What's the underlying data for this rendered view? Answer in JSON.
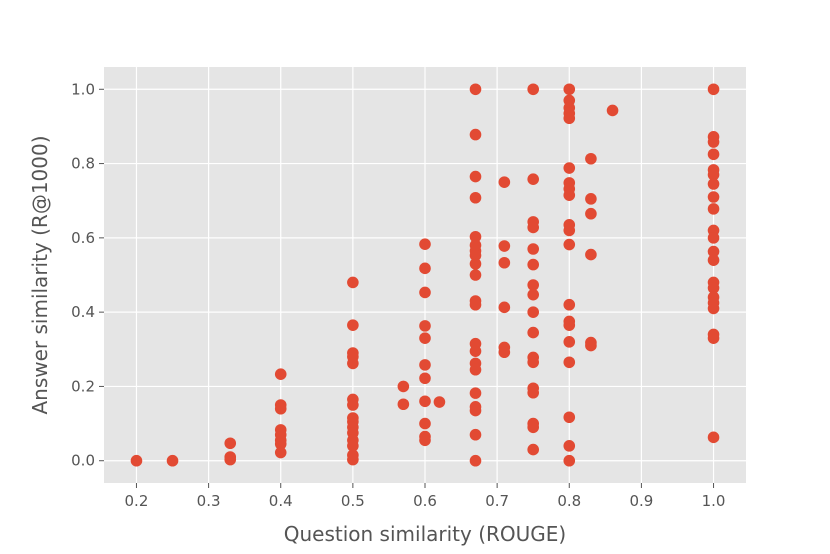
{
  "chart_data": {
    "type": "scatter",
    "title": "",
    "xlabel": "Question similarity (ROUGE)",
    "ylabel": "Answer similarity (R@1000)",
    "xlim": [
      0.155,
      1.045
    ],
    "ylim": [
      -0.06,
      1.06
    ],
    "xticks": [
      0.2,
      0.3,
      0.4,
      0.5,
      0.6,
      0.7,
      0.8,
      0.9,
      1.0
    ],
    "xtick_labels": [
      "0.2",
      "0.3",
      "0.4",
      "0.5",
      "0.6",
      "0.7",
      "0.8",
      "0.9",
      "1.0"
    ],
    "yticks": [
      0.0,
      0.2,
      0.4,
      0.6,
      0.8,
      1.0
    ],
    "ytick_labels": [
      "0.0",
      "0.2",
      "0.4",
      "0.6",
      "0.8",
      "1.0"
    ],
    "grid": true,
    "style": "ggplot",
    "colors": {
      "background": "#e5e5e5",
      "grid": "#ffffff",
      "marker": "#e24a33",
      "text": "#555555"
    },
    "series": [
      {
        "points": [
          [
            0.2,
            0.0
          ],
          [
            0.25,
            0.0
          ],
          [
            0.33,
            0.047
          ],
          [
            0.33,
            0.01
          ],
          [
            0.33,
            0.003
          ],
          [
            0.4,
            0.233
          ],
          [
            0.4,
            0.15
          ],
          [
            0.4,
            0.14
          ],
          [
            0.4,
            0.083
          ],
          [
            0.4,
            0.07
          ],
          [
            0.4,
            0.055
          ],
          [
            0.4,
            0.045
          ],
          [
            0.4,
            0.022
          ],
          [
            0.5,
            0.48
          ],
          [
            0.5,
            0.365
          ],
          [
            0.5,
            0.29
          ],
          [
            0.5,
            0.28
          ],
          [
            0.5,
            0.262
          ],
          [
            0.5,
            0.165
          ],
          [
            0.5,
            0.15
          ],
          [
            0.5,
            0.115
          ],
          [
            0.5,
            0.105
          ],
          [
            0.5,
            0.09
          ],
          [
            0.5,
            0.075
          ],
          [
            0.5,
            0.055
          ],
          [
            0.5,
            0.04
          ],
          [
            0.5,
            0.015
          ],
          [
            0.5,
            0.003
          ],
          [
            0.57,
            0.2
          ],
          [
            0.57,
            0.152
          ],
          [
            0.6,
            0.583
          ],
          [
            0.6,
            0.518
          ],
          [
            0.6,
            0.453
          ],
          [
            0.6,
            0.363
          ],
          [
            0.6,
            0.33
          ],
          [
            0.6,
            0.258
          ],
          [
            0.6,
            0.222
          ],
          [
            0.6,
            0.16
          ],
          [
            0.6,
            0.1
          ],
          [
            0.6,
            0.065
          ],
          [
            0.6,
            0.055
          ],
          [
            0.62,
            0.158
          ],
          [
            0.67,
            1.0
          ],
          [
            0.67,
            0.878
          ],
          [
            0.67,
            0.765
          ],
          [
            0.67,
            0.708
          ],
          [
            0.67,
            0.603
          ],
          [
            0.67,
            0.58
          ],
          [
            0.67,
            0.565
          ],
          [
            0.67,
            0.553
          ],
          [
            0.67,
            0.53
          ],
          [
            0.67,
            0.5
          ],
          [
            0.67,
            0.43
          ],
          [
            0.67,
            0.42
          ],
          [
            0.67,
            0.315
          ],
          [
            0.67,
            0.295
          ],
          [
            0.67,
            0.262
          ],
          [
            0.67,
            0.245
          ],
          [
            0.67,
            0.182
          ],
          [
            0.67,
            0.145
          ],
          [
            0.67,
            0.135
          ],
          [
            0.67,
            0.07
          ],
          [
            0.67,
            0.0
          ],
          [
            0.71,
            0.75
          ],
          [
            0.71,
            0.578
          ],
          [
            0.71,
            0.533
          ],
          [
            0.71,
            0.413
          ],
          [
            0.71,
            0.305
          ],
          [
            0.71,
            0.292
          ],
          [
            0.75,
            1.0
          ],
          [
            0.75,
            0.758
          ],
          [
            0.75,
            0.643
          ],
          [
            0.75,
            0.628
          ],
          [
            0.75,
            0.57
          ],
          [
            0.75,
            0.528
          ],
          [
            0.75,
            0.473
          ],
          [
            0.75,
            0.447
          ],
          [
            0.75,
            0.4
          ],
          [
            0.75,
            0.345
          ],
          [
            0.75,
            0.278
          ],
          [
            0.75,
            0.265
          ],
          [
            0.75,
            0.195
          ],
          [
            0.75,
            0.183
          ],
          [
            0.75,
            0.1
          ],
          [
            0.75,
            0.09
          ],
          [
            0.75,
            0.03
          ],
          [
            0.8,
            1.0
          ],
          [
            0.8,
            0.97
          ],
          [
            0.8,
            0.95
          ],
          [
            0.8,
            0.935
          ],
          [
            0.8,
            0.922
          ],
          [
            0.8,
            0.788
          ],
          [
            0.8,
            0.748
          ],
          [
            0.8,
            0.732
          ],
          [
            0.8,
            0.715
          ],
          [
            0.8,
            0.635
          ],
          [
            0.8,
            0.62
          ],
          [
            0.8,
            0.582
          ],
          [
            0.8,
            0.42
          ],
          [
            0.8,
            0.375
          ],
          [
            0.8,
            0.365
          ],
          [
            0.8,
            0.32
          ],
          [
            0.8,
            0.265
          ],
          [
            0.8,
            0.117
          ],
          [
            0.8,
            0.04
          ],
          [
            0.8,
            0.0
          ],
          [
            0.83,
            0.813
          ],
          [
            0.83,
            0.705
          ],
          [
            0.83,
            0.665
          ],
          [
            0.83,
            0.555
          ],
          [
            0.83,
            0.318
          ],
          [
            0.83,
            0.31
          ],
          [
            0.86,
            0.943
          ],
          [
            1.0,
            1.0
          ],
          [
            1.0,
            0.872
          ],
          [
            1.0,
            0.858
          ],
          [
            1.0,
            0.825
          ],
          [
            1.0,
            0.783
          ],
          [
            1.0,
            0.77
          ],
          [
            1.0,
            0.745
          ],
          [
            1.0,
            0.71
          ],
          [
            1.0,
            0.678
          ],
          [
            1.0,
            0.62
          ],
          [
            1.0,
            0.6
          ],
          [
            1.0,
            0.563
          ],
          [
            1.0,
            0.54
          ],
          [
            1.0,
            0.48
          ],
          [
            1.0,
            0.465
          ],
          [
            1.0,
            0.44
          ],
          [
            1.0,
            0.425
          ],
          [
            1.0,
            0.41
          ],
          [
            1.0,
            0.34
          ],
          [
            1.0,
            0.33
          ],
          [
            1.0,
            0.063
          ]
        ]
      }
    ]
  }
}
